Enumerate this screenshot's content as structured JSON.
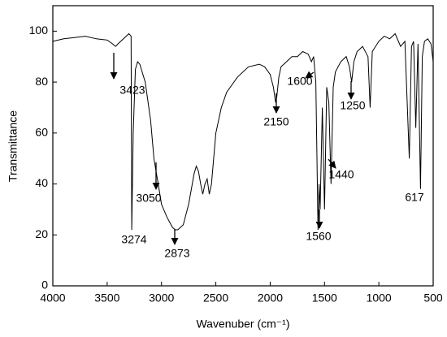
{
  "chart_data": {
    "type": "line",
    "xlabel": "Wavenuber (cm⁻¹)",
    "ylabel": "Transmittance",
    "xlim": [
      4000,
      500
    ],
    "ylim": [
      0,
      110
    ],
    "xticks": [
      4000,
      3500,
      3000,
      2500,
      2000,
      1500,
      1000,
      500
    ],
    "yticks": [
      0,
      20,
      40,
      60,
      80,
      100
    ],
    "grid": false,
    "series": [
      {
        "color": "#000000",
        "x": [
          4000,
          3900,
          3800,
          3700,
          3600,
          3500,
          3450,
          3423,
          3400,
          3350,
          3300,
          3280,
          3274,
          3260,
          3240,
          3220,
          3200,
          3150,
          3100,
          3070,
          3050,
          3030,
          3000,
          2950,
          2900,
          2873,
          2850,
          2800,
          2750,
          2700,
          2680,
          2660,
          2640,
          2620,
          2600,
          2580,
          2560,
          2540,
          2500,
          2450,
          2400,
          2300,
          2200,
          2100,
          2050,
          2000,
          1970,
          1950,
          1940,
          1920,
          1900,
          1850,
          1800,
          1750,
          1700,
          1650,
          1620,
          1600,
          1580,
          1560,
          1550,
          1540,
          1520,
          1500,
          1480,
          1460,
          1440,
          1420,
          1400,
          1350,
          1300,
          1270,
          1250,
          1230,
          1200,
          1150,
          1100,
          1080,
          1060,
          1000,
          950,
          900,
          850,
          800,
          760,
          720,
          700,
          680,
          660,
          640,
          617,
          600,
          580,
          550,
          520,
          500
        ],
        "values": [
          96,
          97,
          97.5,
          98,
          97,
          96.5,
          95,
          94,
          95,
          97,
          99,
          98,
          22,
          60,
          85,
          88,
          87,
          80,
          65,
          50,
          45,
          40,
          32,
          27,
          23,
          22,
          22,
          24,
          32,
          44,
          47,
          45,
          40,
          36,
          40,
          42,
          36,
          40,
          60,
          70,
          76,
          82,
          86,
          87,
          86,
          83,
          78,
          72,
          74,
          82,
          86,
          88,
          90,
          90,
          92,
          91,
          88,
          90,
          80,
          22,
          40,
          30,
          70,
          30,
          78,
          72,
          40,
          78,
          84,
          88,
          90,
          86,
          80,
          88,
          92,
          94,
          90,
          70,
          92,
          96,
          98,
          97,
          99,
          94,
          96,
          50,
          94,
          96,
          62,
          95,
          38,
          90,
          96,
          97,
          95,
          88
        ]
      }
    ],
    "annotations": [
      "3423",
      "3274",
      "3050",
      "2873",
      "2150",
      "1600",
      "1250",
      "1440",
      "1560",
      "617"
    ]
  }
}
